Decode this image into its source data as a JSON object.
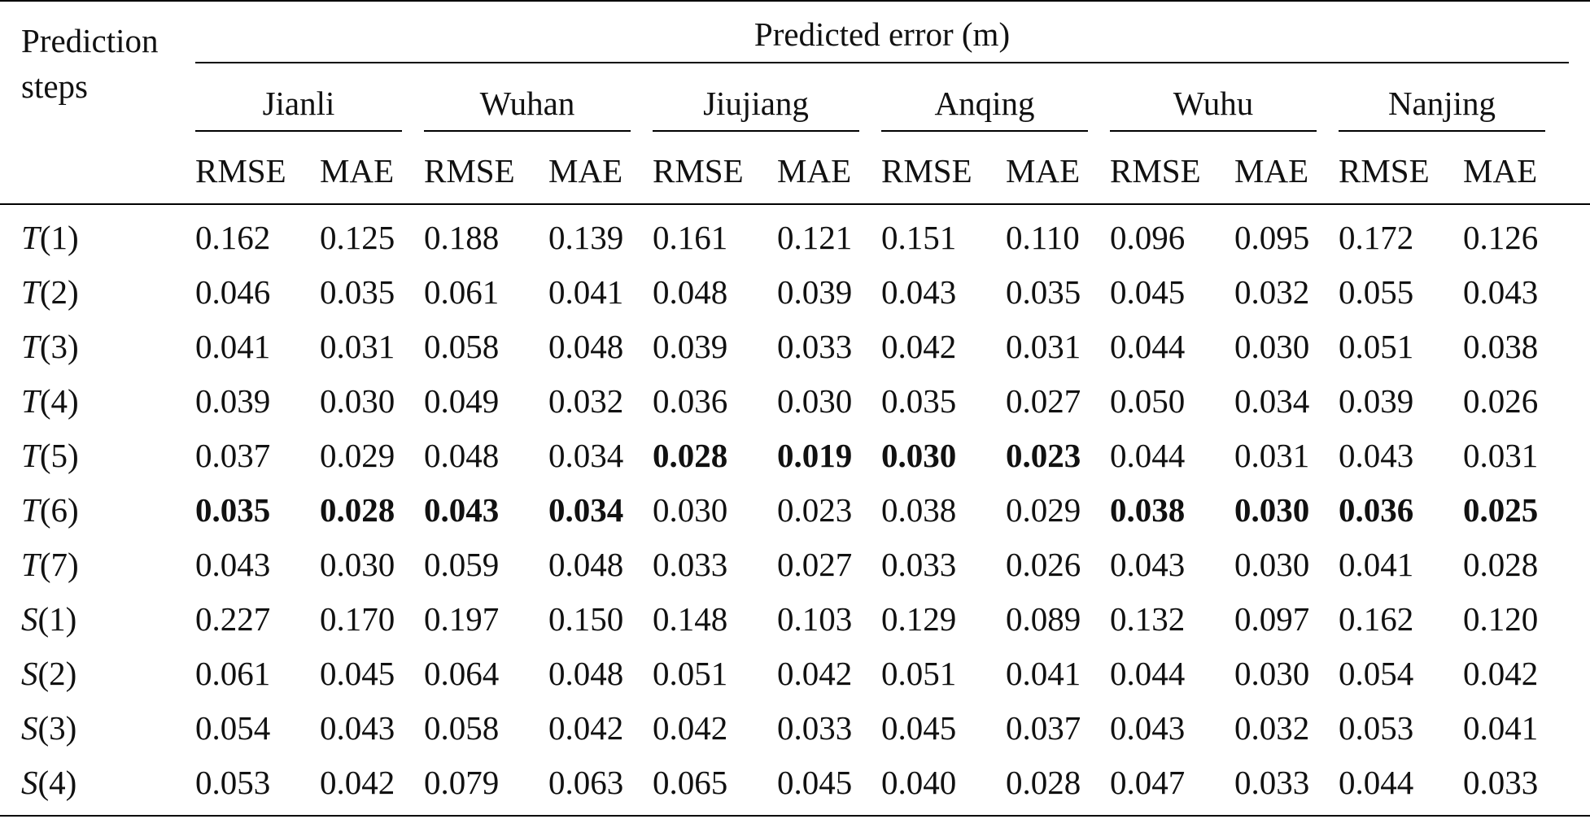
{
  "table": {
    "stub_header": "Prediction steps",
    "group_header": "Predicted error (m)",
    "stations": [
      "Jianli",
      "Wuhan",
      "Jiujiang",
      "Anqing",
      "Wuhu",
      "Nanjing"
    ],
    "metrics": [
      "RMSE",
      "MAE"
    ],
    "rows": [
      {
        "letter": "T",
        "index": "(1)",
        "values": [
          "0.162",
          "0.125",
          "0.188",
          "0.139",
          "0.161",
          "0.121",
          "0.151",
          "0.110",
          "0.096",
          "0.095",
          "0.172",
          "0.126"
        ],
        "bold": [
          false,
          false,
          false,
          false,
          false,
          false,
          false,
          false,
          false,
          false,
          false,
          false
        ]
      },
      {
        "letter": "T",
        "index": "(2)",
        "values": [
          "0.046",
          "0.035",
          "0.061",
          "0.041",
          "0.048",
          "0.039",
          "0.043",
          "0.035",
          "0.045",
          "0.032",
          "0.055",
          "0.043"
        ],
        "bold": [
          false,
          false,
          false,
          false,
          false,
          false,
          false,
          false,
          false,
          false,
          false,
          false
        ]
      },
      {
        "letter": "T",
        "index": "(3)",
        "values": [
          "0.041",
          "0.031",
          "0.058",
          "0.048",
          "0.039",
          "0.033",
          "0.042",
          "0.031",
          "0.044",
          "0.030",
          "0.051",
          "0.038"
        ],
        "bold": [
          false,
          false,
          false,
          false,
          false,
          false,
          false,
          false,
          false,
          false,
          false,
          false
        ]
      },
      {
        "letter": "T",
        "index": "(4)",
        "values": [
          "0.039",
          "0.030",
          "0.049",
          "0.032",
          "0.036",
          "0.030",
          "0.035",
          "0.027",
          "0.050",
          "0.034",
          "0.039",
          "0.026"
        ],
        "bold": [
          false,
          false,
          false,
          false,
          false,
          false,
          false,
          false,
          false,
          false,
          false,
          false
        ]
      },
      {
        "letter": "T",
        "index": "(5)",
        "values": [
          "0.037",
          "0.029",
          "0.048",
          "0.034",
          "0.028",
          "0.019",
          "0.030",
          "0.023",
          "0.044",
          "0.031",
          "0.043",
          "0.031"
        ],
        "bold": [
          false,
          false,
          false,
          false,
          true,
          true,
          true,
          true,
          false,
          false,
          false,
          false
        ]
      },
      {
        "letter": "T",
        "index": "(6)",
        "values": [
          "0.035",
          "0.028",
          "0.043",
          "0.034",
          "0.030",
          "0.023",
          "0.038",
          "0.029",
          "0.038",
          "0.030",
          "0.036",
          "0.025"
        ],
        "bold": [
          true,
          true,
          true,
          true,
          false,
          false,
          false,
          false,
          true,
          true,
          true,
          true
        ]
      },
      {
        "letter": "T",
        "index": "(7)",
        "values": [
          "0.043",
          "0.030",
          "0.059",
          "0.048",
          "0.033",
          "0.027",
          "0.033",
          "0.026",
          "0.043",
          "0.030",
          "0.041",
          "0.028"
        ],
        "bold": [
          false,
          false,
          false,
          false,
          false,
          false,
          false,
          false,
          false,
          false,
          false,
          false
        ]
      },
      {
        "letter": "S",
        "index": "(1)",
        "values": [
          "0.227",
          "0.170",
          "0.197",
          "0.150",
          "0.148",
          "0.103",
          "0.129",
          "0.089",
          "0.132",
          "0.097",
          "0.162",
          "0.120"
        ],
        "bold": [
          false,
          false,
          false,
          false,
          false,
          false,
          false,
          false,
          false,
          false,
          false,
          false
        ]
      },
      {
        "letter": "S",
        "index": "(2)",
        "values": [
          "0.061",
          "0.045",
          "0.064",
          "0.048",
          "0.051",
          "0.042",
          "0.051",
          "0.041",
          "0.044",
          "0.030",
          "0.054",
          "0.042"
        ],
        "bold": [
          false,
          false,
          false,
          false,
          false,
          false,
          false,
          false,
          false,
          false,
          false,
          false
        ]
      },
      {
        "letter": "S",
        "index": "(3)",
        "values": [
          "0.054",
          "0.043",
          "0.058",
          "0.042",
          "0.042",
          "0.033",
          "0.045",
          "0.037",
          "0.043",
          "0.032",
          "0.053",
          "0.041"
        ],
        "bold": [
          false,
          false,
          false,
          false,
          false,
          false,
          false,
          false,
          false,
          false,
          false,
          false
        ]
      },
      {
        "letter": "S",
        "index": "(4)",
        "values": [
          "0.053",
          "0.042",
          "0.079",
          "0.063",
          "0.065",
          "0.045",
          "0.040",
          "0.028",
          "0.047",
          "0.033",
          "0.044",
          "0.033"
        ],
        "bold": [
          false,
          false,
          false,
          false,
          false,
          false,
          false,
          false,
          false,
          false,
          false,
          false
        ]
      }
    ]
  }
}
